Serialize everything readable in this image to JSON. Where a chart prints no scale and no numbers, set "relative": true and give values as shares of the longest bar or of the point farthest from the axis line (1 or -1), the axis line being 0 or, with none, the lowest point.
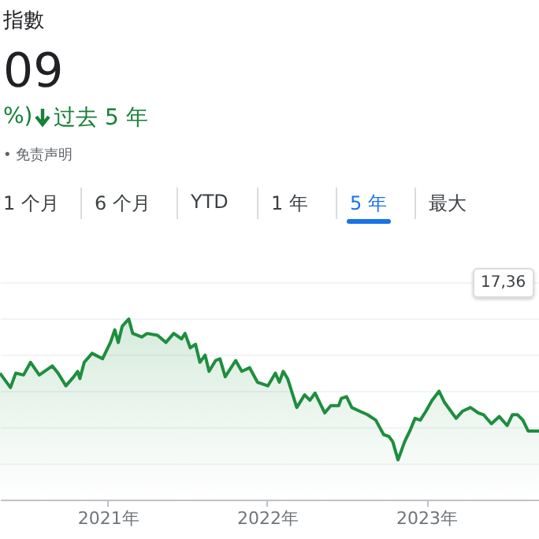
{
  "chart_data": {
    "type": "area",
    "title": "指數",
    "subtitle": "09",
    "relative": true,
    "annotations": [
      "%)",
      "过去 5 年",
      "• 免责声明",
      "1 个月",
      "6 个月",
      "YTD",
      "1 年",
      "5 年",
      "最大",
      "17,36"
    ],
    "x": [
      "2020-04-29",
      "2020-05-23",
      "2020-06-04",
      "2020-06-22",
      "2020-07-08",
      "2020-07-28",
      "2020-08-21",
      "2020-08-27",
      "2020-09-09",
      "2020-09-27",
      "2020-10-15",
      "2020-10-24",
      "2020-10-29",
      "2020-11-08",
      "2020-11-26",
      "2020-12-20",
      "2021-01-07",
      "2021-01-17",
      "2021-01-25",
      "2021-02-03",
      "2021-02-18",
      "2021-02-27",
      "2021-03-20",
      "2021-04-01",
      "2021-04-25",
      "2021-05-14",
      "2021-06-01",
      "2021-06-19",
      "2021-06-27",
      "2021-07-09",
      "2021-07-21",
      "2021-07-31",
      "2021-08-12",
      "2021-08-21",
      "2021-09-05",
      "2021-09-15",
      "2021-09-27",
      "2021-10-21",
      "2021-11-04",
      "2021-11-22",
      "2021-12-10",
      "2022-01-03",
      "2022-01-20",
      "2022-01-29",
      "2022-02-07",
      "2022-02-17",
      "2022-03-10",
      "2022-03-28",
      "2022-04-09",
      "2022-04-21",
      "2022-05-13",
      "2022-05-27",
      "2022-06-14",
      "2022-06-20",
      "2022-07-02",
      "2022-07-14",
      "2022-08-01",
      "2022-08-19",
      "2022-09-07",
      "2022-09-25",
      "2022-10-07",
      "2022-10-16",
      "2022-10-28",
      "2022-11-12",
      "2022-11-24",
      "2022-12-06",
      "2022-12-18",
      "2022-12-31",
      "2023-01-14",
      "2023-01-30",
      "2023-02-11",
      "2023-03-01",
      "2023-03-10",
      "2023-03-25",
      "2023-04-12",
      "2023-04-30",
      "2023-05-12",
      "2023-05-30",
      "2023-06-17",
      "2023-07-05",
      "2023-07-17",
      "2023-07-29",
      "2023-08-10",
      "2023-08-22",
      "2023-09-03",
      "2023-09-16"
    ],
    "series": [
      {
        "color": "#1e8e3e",
        "values": [
          0.7,
          0.62,
          0.7,
          0.69,
          0.76,
          0.69,
          0.73,
          0.74,
          0.7,
          0.63,
          0.68,
          0.71,
          0.67,
          0.76,
          0.81,
          0.78,
          0.87,
          0.94,
          0.87,
          0.96,
          1,
          0.92,
          0.9,
          0.92,
          0.91,
          0.87,
          0.92,
          0.89,
          0.92,
          0.84,
          0.86,
          0.76,
          0.8,
          0.71,
          0.77,
          0.78,
          0.68,
          0.77,
          0.71,
          0.73,
          0.65,
          0.63,
          0.7,
          0.65,
          0.71,
          0.67,
          0.51,
          0.58,
          0.55,
          0.59,
          0.48,
          0.52,
          0.52,
          0.56,
          0.57,
          0.51,
          0.49,
          0.47,
          0.44,
          0.36,
          0.35,
          0.32,
          0.22,
          0.32,
          0.38,
          0.45,
          0.44,
          0.49,
          0.55,
          0.6,
          0.54,
          0.48,
          0.45,
          0.49,
          0.51,
          0.48,
          0.47,
          0.42,
          0.46,
          0.41,
          0.47,
          0.47,
          0.44,
          0.38,
          0.38,
          0.38
        ]
      }
    ],
    "xlim": [
      "2020-04-29",
      "2023-09-16"
    ],
    "xticks": [
      {
        "value": "2021-01-01",
        "label": "2021年"
      },
      {
        "value": "2022-01-01",
        "label": "2022年"
      },
      {
        "value": "2023-01-01",
        "label": "2023年"
      }
    ],
    "grid": "y"
  }
}
